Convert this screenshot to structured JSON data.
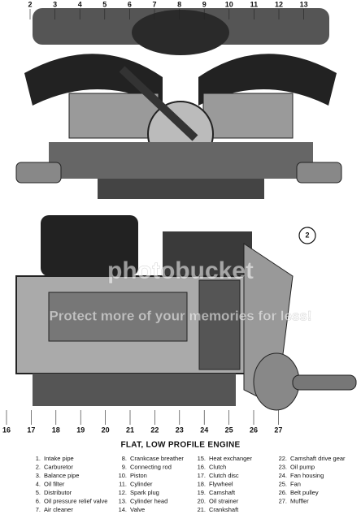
{
  "callouts_top": [
    "2",
    "3",
    "4",
    "5",
    "6",
    "7",
    "8",
    "9",
    "10",
    "11",
    "12",
    "13"
  ],
  "callouts_bottom": [
    "16",
    "17",
    "18",
    "19",
    "20",
    "21",
    "22",
    "23",
    "24",
    "25",
    "26",
    "27"
  ],
  "figure_number": "2",
  "watermark": [
    "photobucket",
    "Protect more of your memories for less!"
  ],
  "title": "FLAT, LOW PROFILE ENGINE",
  "legend": [
    {
      "number": "1.",
      "label": "Intake pipe"
    },
    {
      "number": "2.",
      "label": "Carburetor"
    },
    {
      "number": "3.",
      "label": "Balance pipe"
    },
    {
      "number": "4.",
      "label": "Oil filter"
    },
    {
      "number": "5.",
      "label": "Distributor"
    },
    {
      "number": "6.",
      "label": "Oil pressure relief valve"
    },
    {
      "number": "7.",
      "label": "Air cleaner"
    },
    {
      "number": "8.",
      "label": "Crankcase breather"
    },
    {
      "number": "9.",
      "label": "Connecting rod"
    },
    {
      "number": "10.",
      "label": "Piston"
    },
    {
      "number": "11.",
      "label": "Cylinder"
    },
    {
      "number": "12.",
      "label": "Spark plug"
    },
    {
      "number": "13.",
      "label": "Cylinder head"
    },
    {
      "number": "14.",
      "label": "Valve"
    },
    {
      "number": "15.",
      "label": "Heat exchanger"
    },
    {
      "number": "16.",
      "label": "Clutch"
    },
    {
      "number": "17.",
      "label": "Clutch disc"
    },
    {
      "number": "18.",
      "label": "Flywheel"
    },
    {
      "number": "19.",
      "label": "Camshaft"
    },
    {
      "number": "20.",
      "label": "Oil strainer"
    },
    {
      "number": "21.",
      "label": "Crankshaft"
    },
    {
      "number": "22.",
      "label": "Camshaft drive gear"
    },
    {
      "number": "23.",
      "label": "Oil pump"
    },
    {
      "number": "24.",
      "label": "Fan housing"
    },
    {
      "number": "25.",
      "label": "Fan"
    },
    {
      "number": "26.",
      "label": "Belt pulley"
    },
    {
      "number": "27.",
      "label": "Muffler"
    }
  ]
}
